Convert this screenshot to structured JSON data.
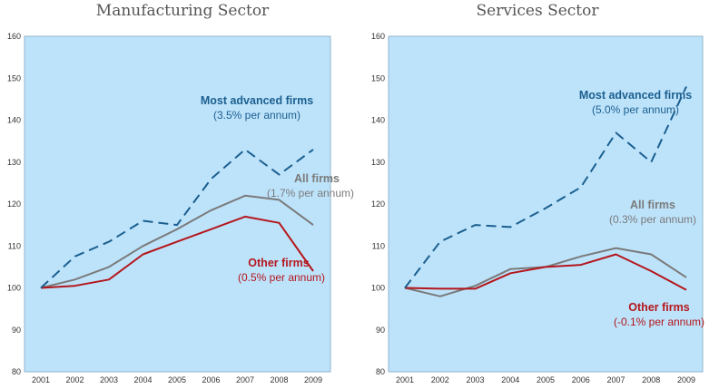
{
  "chart_data": [
    {
      "type": "line",
      "title": "Manufacturing Sector",
      "x": [
        "2001",
        "2002",
        "2003",
        "2004",
        "2005",
        "2006",
        "2007",
        "2008",
        "2009"
      ],
      "ylim": [
        80,
        160
      ],
      "yticks": [
        80,
        90,
        100,
        110,
        120,
        130,
        140,
        150,
        160
      ],
      "grid": false,
      "series": [
        {
          "name": "Most advanced  firms",
          "note": "(3.5% per annum)",
          "color": "#1b5f8f",
          "style": "dashed",
          "values": [
            100,
            107.5,
            111,
            116,
            115,
            126,
            133,
            127,
            133
          ]
        },
        {
          "name": "All firms",
          "note": "(1.7% per annum)",
          "color": "#7a7a7a",
          "style": "solid",
          "values": [
            100,
            102,
            105,
            110,
            114,
            118.5,
            122,
            121,
            115
          ]
        },
        {
          "name": "Other firms",
          "note": "(0.5% per annum)",
          "color": "#b4161b",
          "style": "solid",
          "values": [
            100,
            100.5,
            102,
            108,
            111,
            114,
            117,
            115.5,
            104
          ]
        }
      ]
    },
    {
      "type": "line",
      "title": "Services Sector",
      "x": [
        "2001",
        "2002",
        "2003",
        "2004",
        "2005",
        "2006",
        "2007",
        "2008",
        "2009"
      ],
      "ylim": [
        80,
        160
      ],
      "yticks": [
        80,
        90,
        100,
        110,
        120,
        130,
        140,
        150,
        160
      ],
      "grid": false,
      "series": [
        {
          "name": "Most advanced firms",
          "note": "(5.0% per annum)",
          "color": "#1b5f8f",
          "style": "dashed",
          "values": [
            100,
            111,
            115,
            114.5,
            119,
            124,
            137,
            130,
            148
          ]
        },
        {
          "name": "All firms",
          "note": "(0.3% per annum)",
          "color": "#7a7a7a",
          "style": "solid",
          "values": [
            100,
            98,
            100.5,
            104.5,
            105,
            107.5,
            109.5,
            108,
            102.5
          ]
        },
        {
          "name": "Other firms",
          "note": "(-0.1% per annum)",
          "color": "#b4161b",
          "style": "solid",
          "values": [
            100,
            99.8,
            99.8,
            103.5,
            105,
            105.5,
            108,
            104,
            99.5
          ]
        }
      ]
    }
  ]
}
